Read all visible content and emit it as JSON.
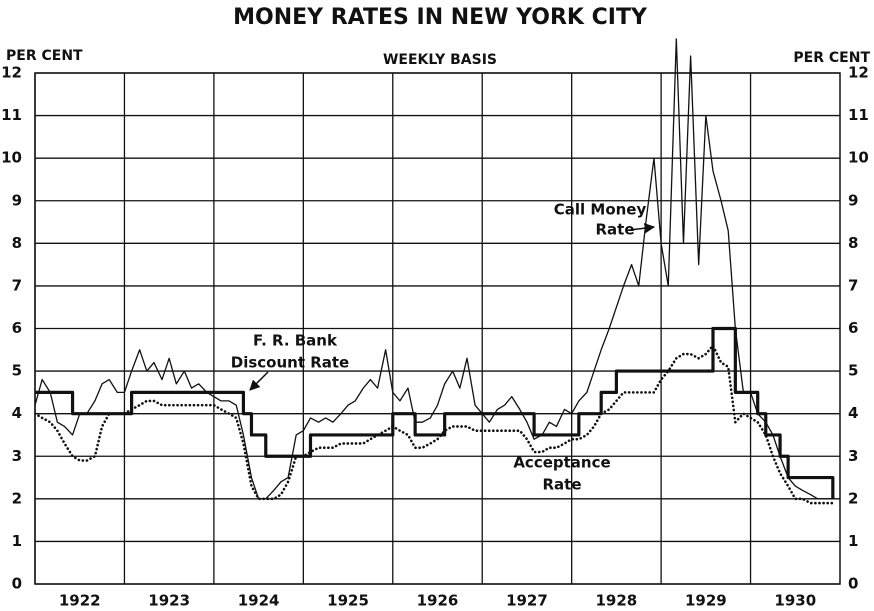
{
  "chart_data": {
    "type": "line",
    "title": "MONEY RATES IN NEW YORK CITY",
    "subtitle": "WEEKLY BASIS",
    "y_label": "PER CENT",
    "x": [
      1922.0,
      1922.08,
      1922.17,
      1922.25,
      1922.33,
      1922.42,
      1922.5,
      1922.58,
      1922.67,
      1922.75,
      1922.83,
      1922.92,
      1923.0,
      1923.08,
      1923.17,
      1923.25,
      1923.33,
      1923.42,
      1923.5,
      1923.58,
      1923.67,
      1923.75,
      1923.83,
      1923.92,
      1924.0,
      1924.08,
      1924.17,
      1924.25,
      1924.33,
      1924.42,
      1924.5,
      1924.58,
      1924.67,
      1924.75,
      1924.83,
      1924.92,
      1925.0,
      1925.08,
      1925.17,
      1925.25,
      1925.33,
      1925.42,
      1925.5,
      1925.58,
      1925.67,
      1925.75,
      1925.83,
      1925.92,
      1926.0,
      1926.08,
      1926.17,
      1926.25,
      1926.33,
      1926.42,
      1926.5,
      1926.58,
      1926.67,
      1926.75,
      1926.83,
      1926.92,
      1927.0,
      1927.08,
      1927.17,
      1927.25,
      1927.33,
      1927.42,
      1927.5,
      1927.58,
      1927.67,
      1927.75,
      1927.83,
      1927.92,
      1928.0,
      1928.08,
      1928.17,
      1928.25,
      1928.33,
      1928.42,
      1928.5,
      1928.58,
      1928.67,
      1928.75,
      1928.83,
      1928.92,
      1929.0,
      1929.08,
      1929.17,
      1929.25,
      1929.33,
      1929.42,
      1929.5,
      1929.58,
      1929.67,
      1929.75,
      1929.83,
      1929.92,
      1930.0,
      1930.08,
      1930.17,
      1930.25,
      1930.33,
      1930.42,
      1930.5,
      1930.58,
      1930.67,
      1930.75,
      1930.83,
      1930.92
    ],
    "series": [
      {
        "name": "Call Money Rate",
        "color": "#111111",
        "values": [
          4.2,
          4.8,
          4.5,
          3.8,
          3.7,
          3.5,
          4.0,
          4.0,
          4.3,
          4.7,
          4.8,
          4.5,
          4.5,
          5.0,
          5.5,
          5.0,
          5.2,
          4.8,
          5.3,
          4.7,
          5.0,
          4.6,
          4.7,
          4.5,
          4.4,
          4.3,
          4.3,
          4.2,
          3.5,
          2.5,
          2.0,
          2.0,
          2.2,
          2.4,
          2.5,
          3.5,
          3.6,
          3.9,
          3.8,
          3.9,
          3.8,
          4.0,
          4.2,
          4.3,
          4.6,
          4.8,
          4.6,
          5.5,
          4.5,
          4.3,
          4.6,
          3.8,
          3.8,
          3.9,
          4.2,
          4.7,
          5.0,
          4.6,
          5.3,
          4.2,
          4.0,
          3.8,
          4.1,
          4.2,
          4.4,
          4.1,
          3.8,
          3.4,
          3.5,
          3.8,
          3.7,
          4.1,
          4.0,
          4.3,
          4.5,
          5.0,
          5.5,
          6.0,
          6.5,
          7.0,
          7.5,
          7.0,
          8.5,
          10.0,
          8.0,
          7.0,
          12.8,
          8.0,
          12.4,
          7.5,
          11.0,
          9.7,
          9.0,
          8.3,
          6.0,
          4.5,
          4.5,
          4.0,
          3.8,
          3.5,
          3.0,
          2.5,
          2.3,
          2.2,
          2.1,
          2.0,
          2.0,
          2.0
        ]
      },
      {
        "name": "F. R. Bank Discount Rate",
        "color": "#111111",
        "step": true,
        "values": [
          4.5,
          4.5,
          4.5,
          4.5,
          4.5,
          4.0,
          4.0,
          4.0,
          4.0,
          4.0,
          4.0,
          4.0,
          4.0,
          4.5,
          4.5,
          4.5,
          4.5,
          4.5,
          4.5,
          4.5,
          4.5,
          4.5,
          4.5,
          4.5,
          4.5,
          4.5,
          4.5,
          4.5,
          4.0,
          3.5,
          3.5,
          3.0,
          3.0,
          3.0,
          3.0,
          3.0,
          3.0,
          3.5,
          3.5,
          3.5,
          3.5,
          3.5,
          3.5,
          3.5,
          3.5,
          3.5,
          3.5,
          3.5,
          4.0,
          4.0,
          4.0,
          3.5,
          3.5,
          3.5,
          3.5,
          4.0,
          4.0,
          4.0,
          4.0,
          4.0,
          4.0,
          4.0,
          4.0,
          4.0,
          4.0,
          4.0,
          4.0,
          3.5,
          3.5,
          3.5,
          3.5,
          3.5,
          3.5,
          4.0,
          4.0,
          4.0,
          4.5,
          4.5,
          5.0,
          5.0,
          5.0,
          5.0,
          5.0,
          5.0,
          5.0,
          5.0,
          5.0,
          5.0,
          5.0,
          5.0,
          5.0,
          6.0,
          6.0,
          6.0,
          4.5,
          4.5,
          4.5,
          4.0,
          3.5,
          3.5,
          3.0,
          2.5,
          2.5,
          2.5,
          2.5,
          2.5,
          2.5,
          2.0
        ]
      },
      {
        "name": "Acceptance Rate",
        "color": "#111111",
        "dash": "dotted",
        "values": [
          4.0,
          3.9,
          3.8,
          3.6,
          3.3,
          3.0,
          2.9,
          2.9,
          3.0,
          3.7,
          4.0,
          4.0,
          4.0,
          4.1,
          4.2,
          4.3,
          4.3,
          4.2,
          4.2,
          4.2,
          4.2,
          4.2,
          4.2,
          4.2,
          4.2,
          4.1,
          4.0,
          3.9,
          3.3,
          2.3,
          2.0,
          2.0,
          2.0,
          2.1,
          2.4,
          3.0,
          3.0,
          3.1,
          3.2,
          3.2,
          3.2,
          3.3,
          3.3,
          3.3,
          3.3,
          3.4,
          3.5,
          3.6,
          3.7,
          3.6,
          3.5,
          3.2,
          3.2,
          3.3,
          3.4,
          3.6,
          3.7,
          3.7,
          3.7,
          3.6,
          3.6,
          3.6,
          3.6,
          3.6,
          3.6,
          3.6,
          3.4,
          3.1,
          3.1,
          3.2,
          3.2,
          3.3,
          3.4,
          3.4,
          3.5,
          3.7,
          4.0,
          4.1,
          4.3,
          4.5,
          4.5,
          4.5,
          4.5,
          4.5,
          4.8,
          5.0,
          5.3,
          5.4,
          5.4,
          5.3,
          5.4,
          5.6,
          5.2,
          5.1,
          3.8,
          4.0,
          3.9,
          3.8,
          3.5,
          3.0,
          2.6,
          2.3,
          2.0,
          2.0,
          1.9,
          1.9,
          1.9,
          1.9
        ]
      }
    ],
    "annotations": [
      {
        "lines": [
          "Call Money",
          "Rate"
        ]
      },
      {
        "lines": [
          "F. R. Bank",
          "Discount Rate"
        ]
      },
      {
        "lines": [
          "Acceptance",
          "Rate"
        ]
      }
    ],
    "xlim": [
      1922,
      1931
    ],
    "xticks": [
      {
        "value": 1922.5,
        "label": "1922"
      },
      {
        "value": 1923.5,
        "label": "1923"
      },
      {
        "value": 1924.5,
        "label": "1924"
      },
      {
        "value": 1925.5,
        "label": "1925"
      },
      {
        "value": 1926.5,
        "label": "1926"
      },
      {
        "value": 1927.5,
        "label": "1927"
      },
      {
        "value": 1928.5,
        "label": "1928"
      },
      {
        "value": 1929.5,
        "label": "1929"
      },
      {
        "value": 1930.5,
        "label": "1930"
      }
    ],
    "ylim": [
      0,
      12
    ],
    "yticks": [
      0,
      1,
      2,
      3,
      4,
      5,
      6,
      7,
      8,
      9,
      10,
      11,
      12
    ],
    "grid": true
  }
}
